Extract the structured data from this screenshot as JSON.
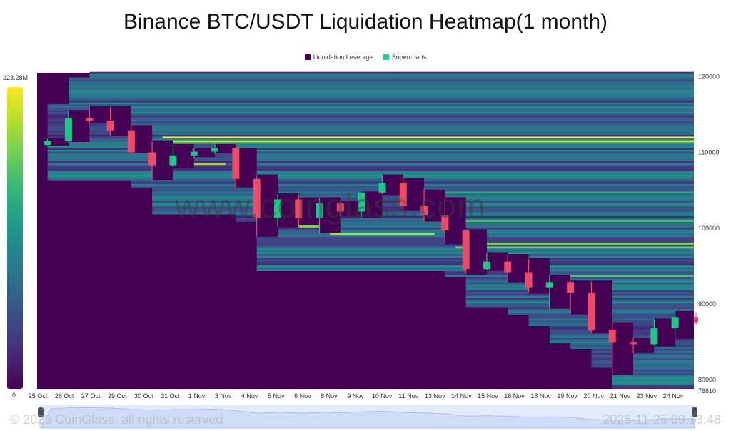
{
  "title": "Binance BTC/USDT Liquidation Heatmap(1 month)",
  "legend": [
    {
      "label": "Liquidation Leverage",
      "color": "#440154"
    },
    {
      "label": "Supercharts",
      "color": "#22d38a"
    }
  ],
  "colorbar": {
    "max_label": "223.28M",
    "min_label": "0",
    "colormap": "viridis"
  },
  "watermark": "www.coinglass.com",
  "footer": {
    "copyright": "© 2025 CoinGlass, all rights reserved",
    "timestamp": "2025-11-25 09:13:48"
  },
  "chart_data": {
    "type": "heatmap",
    "title": "Binance BTC/USDT Liquidation Heatmap(1 month)",
    "x_tick_labels": [
      "25 Oct",
      "26 Oct",
      "27 Oct",
      "29 Oct",
      "30 Oct",
      "31 Oct",
      "1 Nov",
      "3 Nov",
      "4 Nov",
      "5 Nov",
      "6 Nov",
      "8 Nov",
      "9 Nov",
      "10 Nov",
      "11 Nov",
      "13 Nov",
      "14 Nov",
      "15 Nov",
      "16 Nov",
      "18 Nov",
      "19 Nov",
      "20 Nov",
      "21 Nov",
      "23 Nov",
      "24 Nov"
    ],
    "y_tick_labels": [
      "120000",
      "110000",
      "100000",
      "90000",
      "80000",
      "78810"
    ],
    "ylim": [
      78810,
      120500
    ],
    "value_range": [
      0,
      223280000
    ],
    "candles": {
      "dates": [
        "25 Oct",
        "26 Oct",
        "27 Oct",
        "28 Oct",
        "29 Oct",
        "30 Oct",
        "31 Oct",
        "1 Nov",
        "2 Nov",
        "3 Nov",
        "4 Nov",
        "5 Nov",
        "6 Nov",
        "7 Nov",
        "8 Nov",
        "9 Nov",
        "10 Nov",
        "11 Nov",
        "12 Nov",
        "13 Nov",
        "14 Nov",
        "15 Nov",
        "16 Nov",
        "17 Nov",
        "18 Nov",
        "19 Nov",
        "20 Nov",
        "21 Nov",
        "22 Nov",
        "23 Nov",
        "24 Nov",
        "25 Nov"
      ],
      "ohlc": [
        [
          111000,
          111800,
          110800,
          111500
        ],
        [
          111500,
          115500,
          111300,
          114500
        ],
        [
          114500,
          116200,
          113800,
          114200
        ],
        [
          114200,
          116000,
          112200,
          112900
        ],
        [
          112900,
          113600,
          109800,
          110000
        ],
        [
          110000,
          111500,
          106300,
          108300
        ],
        [
          108300,
          111000,
          108000,
          109600
        ],
        [
          109600,
          110600,
          109300,
          110100
        ],
        [
          110100,
          111200,
          109800,
          110600
        ],
        [
          110600,
          110700,
          105300,
          106500
        ],
        [
          106500,
          107000,
          98900,
          101400
        ],
        [
          101400,
          104500,
          100200,
          103800
        ],
        [
          103800,
          104200,
          100300,
          101300
        ],
        [
          101300,
          104000,
          99300,
          103300
        ],
        [
          103300,
          103500,
          101600,
          102200
        ],
        [
          102200,
          104800,
          101400,
          104700
        ],
        [
          104700,
          107000,
          104500,
          106000
        ],
        [
          106000,
          106700,
          102500,
          103000
        ],
        [
          103000,
          105200,
          100800,
          101700
        ],
        [
          101700,
          104000,
          98000,
          99700
        ],
        [
          99700,
          99800,
          94000,
          94600
        ],
        [
          94600,
          96800,
          94500,
          95600
        ],
        [
          95600,
          96600,
          93000,
          94200
        ],
        [
          94200,
          96000,
          91500,
          92200
        ],
        [
          92200,
          93800,
          89300,
          92900
        ],
        [
          92900,
          93000,
          88700,
          91500
        ],
        [
          91500,
          93000,
          86200,
          86600
        ],
        [
          86600,
          87500,
          80600,
          85000
        ],
        [
          85000,
          85600,
          83600,
          84700
        ],
        [
          84700,
          88000,
          84500,
          86800
        ],
        [
          86800,
          89100,
          85400,
          88300
        ],
        [
          88300,
          88800,
          87300,
          87600
        ]
      ],
      "up_color": "#21c48a",
      "down_color": "#ee4b6a"
    },
    "key_liquidation_levels": [
      {
        "price": 112000,
        "intensity": 1.0,
        "from": "31 Oct"
      },
      {
        "price": 111500,
        "intensity": 0.92,
        "from": "31 Oct"
      },
      {
        "price": 108500,
        "intensity": 0.85,
        "from": "31 Oct",
        "to": "3 Nov"
      },
      {
        "price": 100300,
        "intensity": 0.8,
        "from": "5 Nov",
        "to": "8 Nov"
      },
      {
        "price": 99200,
        "intensity": 0.88,
        "from": "8 Nov",
        "to": "13 Nov"
      },
      {
        "price": 98000,
        "intensity": 0.82,
        "from": "14 Nov"
      },
      {
        "price": 97500,
        "intensity": 0.78,
        "from": "14 Nov"
      },
      {
        "price": 104800,
        "intensity": 0.6,
        "from": "10 Nov"
      },
      {
        "price": 101000,
        "intensity": 0.7,
        "from": "13 Nov"
      },
      {
        "price": 93800,
        "intensity": 0.72,
        "from": "18 Nov"
      },
      {
        "price": 85500,
        "intensity": 0.6,
        "from": "23 Nov"
      }
    ]
  }
}
